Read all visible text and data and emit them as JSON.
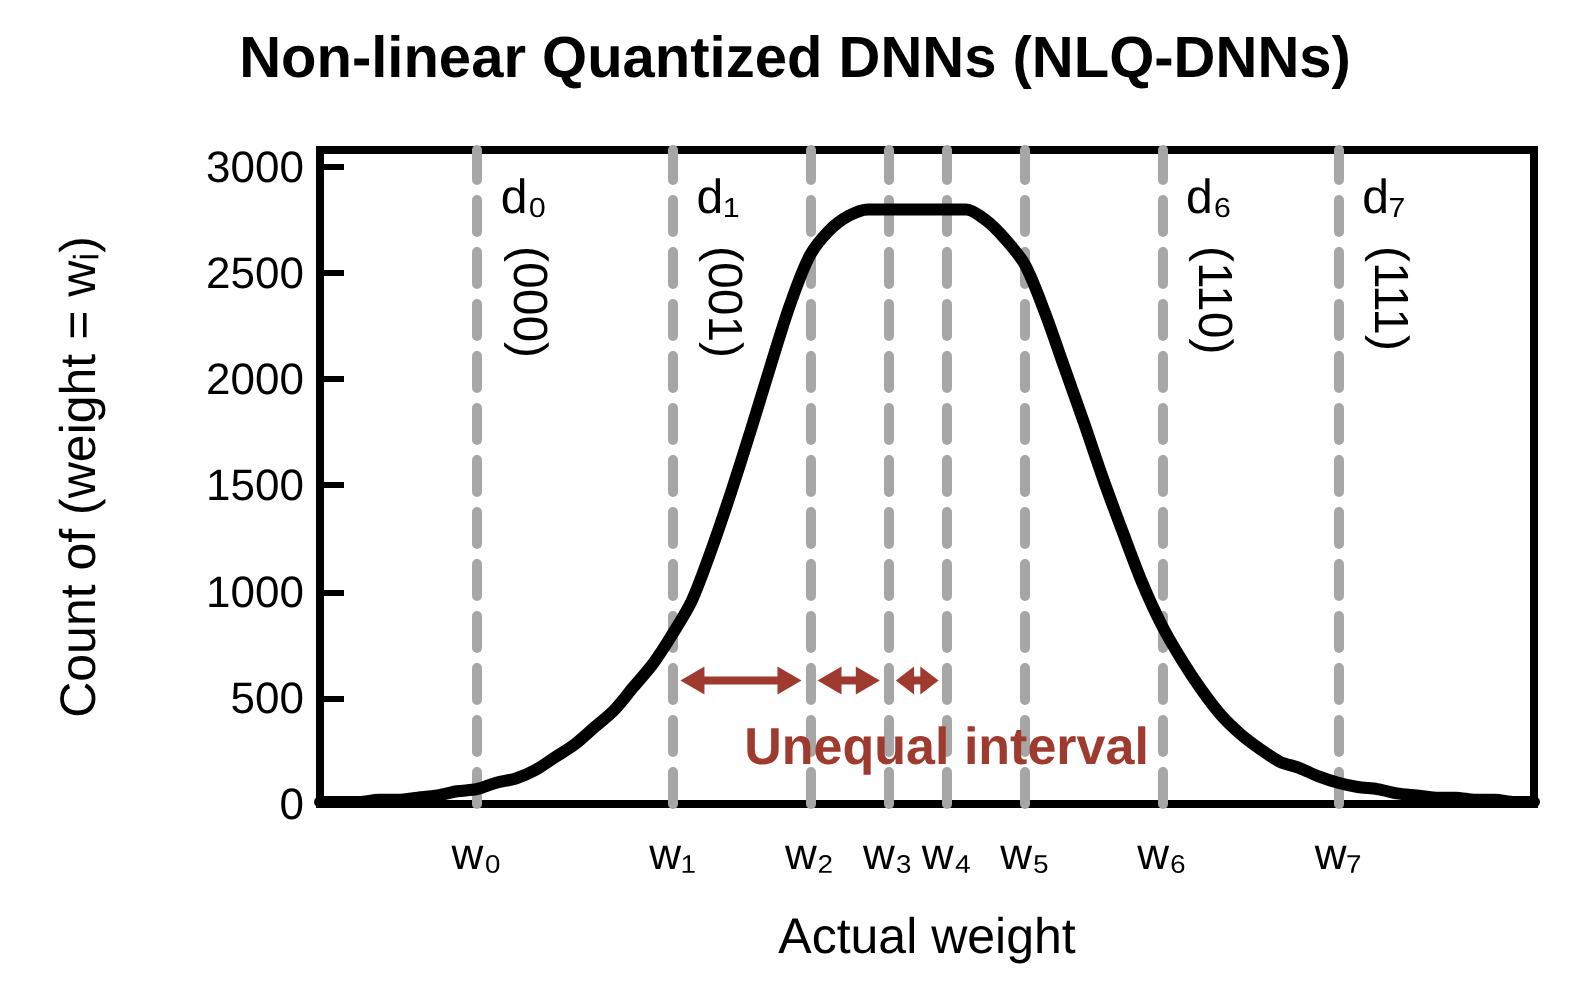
{
  "chart_data": {
    "type": "line",
    "title": "Non-linear Quantized DNNs (NLQ-DNNs)",
    "xlabel": "Actual weight",
    "ylabel": "Count of (weight = wᵢ)",
    "categories": [
      null,
      null,
      null,
      null,
      null,
      null,
      null,
      null,
      "w₀",
      null,
      null,
      null,
      null,
      null,
      null,
      null,
      null,
      null,
      "w₁",
      null,
      null,
      null,
      null,
      null,
      null,
      "w₂",
      null,
      null,
      null,
      "w₃",
      null,
      null,
      "w₄",
      null,
      null,
      null,
      "w₅",
      null,
      null,
      null,
      null,
      null,
      null,
      "w₆",
      null,
      null,
      null,
      null,
      null,
      null,
      null,
      null,
      "w₇",
      null,
      null,
      null,
      null,
      null,
      null,
      null,
      null,
      null,
      null
    ],
    "series": [
      {
        "color": "#000000",
        "values": [
          10,
          10,
          10,
          20,
          20,
          30,
          40,
          60,
          70,
          100,
          120,
          160,
          220,
          280,
          360,
          440,
          550,
          660,
          800,
          960,
          1200,
          1470,
          1760,
          2060,
          2350,
          2580,
          2700,
          2770,
          2800,
          2800,
          2800,
          2800,
          2800,
          2800,
          2750,
          2660,
          2540,
          2320,
          2060,
          1800,
          1530,
          1280,
          1040,
          840,
          680,
          540,
          420,
          330,
          260,
          200,
          170,
          130,
          100,
          80,
          70,
          50,
          40,
          30,
          30,
          20,
          20,
          10,
          10
        ]
      }
    ],
    "ylim": [
      0,
      3080
    ],
    "yticks": [
      0,
      500,
      1000,
      1500,
      2000,
      2500,
      3000
    ],
    "ref_lines": [
      {
        "axis": "x",
        "value": "w₀",
        "label": "d₀\n(000)",
        "color": "#a6a6a6",
        "line_style": "dashed"
      },
      {
        "axis": "x",
        "value": "w₁",
        "label": "d₁\n(001)",
        "color": "#a6a6a6",
        "line_style": "dashed"
      },
      {
        "axis": "x",
        "value": "w₂",
        "color": "#a6a6a6",
        "line_style": "dashed"
      },
      {
        "axis": "x",
        "value": "w₃",
        "color": "#a6a6a6",
        "line_style": "dashed"
      },
      {
        "axis": "x",
        "value": "w₄",
        "color": "#a6a6a6",
        "line_style": "dashed"
      },
      {
        "axis": "x",
        "value": "w₅",
        "color": "#a6a6a6",
        "line_style": "dashed"
      },
      {
        "axis": "x",
        "value": "w₆",
        "label": "d₆\n(110)",
        "color": "#a6a6a6",
        "line_style": "dashed"
      },
      {
        "axis": "x",
        "value": "w₇",
        "label": "d₇\n(111)",
        "color": "#a6a6a6",
        "line_style": "dashed"
      }
    ],
    "annotations": [
      {
        "text": "Unequal interval",
        "x": "w₄",
        "y": 271
      }
    ],
    "grid": false,
    "marker": "none",
    "line_style": "solid"
  }
}
